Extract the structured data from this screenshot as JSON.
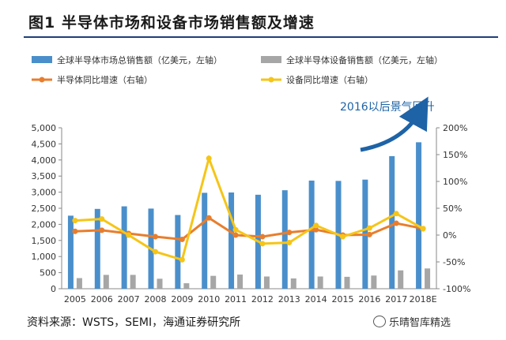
{
  "header": {
    "title": "图1  半导体市场和设备市场销售额及增速"
  },
  "footer": {
    "source": "资料来源：WSTS，SEMI，海通证券研究所",
    "watermark": "乐晴智库精选"
  },
  "annotation": {
    "text": "2016以后景气回升"
  },
  "colors": {
    "bar_market": "#4a8fcb",
    "bar_equip": "#a6a6a6",
    "line_market": "#e87e2d",
    "line_equip": "#f5c518",
    "arrow": "#1e63a6"
  },
  "chart_data": {
    "type": "bar",
    "title": "半导体市场和设备市场销售额及增速",
    "categories": [
      "2005",
      "2006",
      "2007",
      "2008",
      "2009",
      "2010",
      "2011",
      "2012",
      "2013",
      "2014",
      "2015",
      "2016",
      "2017",
      "2018E"
    ],
    "series": [
      {
        "name": "全球半导体市场总销售额（亿美元，左轴）",
        "axis": "left",
        "kind": "bar",
        "values": [
          2270,
          2480,
          2560,
          2490,
          2290,
          2980,
          2990,
          2920,
          3060,
          3360,
          3350,
          3390,
          4120,
          4550
        ]
      },
      {
        "name": "全球半导体设备销售额（亿美元，左轴）",
        "axis": "left",
        "kind": "bar",
        "values": [
          330,
          430,
          430,
          310,
          170,
          400,
          440,
          380,
          320,
          380,
          370,
          410,
          570,
          630
        ]
      },
      {
        "name": "半导体同比增速（右轴）",
        "axis": "right",
        "kind": "line",
        "values": [
          7,
          9,
          3,
          -3,
          -8,
          32,
          0,
          -3,
          5,
          10,
          0,
          1,
          22,
          12
        ]
      },
      {
        "name": "设备同比增速（右轴）",
        "axis": "right",
        "kind": "line",
        "values": [
          27,
          30,
          0,
          -31,
          -46,
          143,
          10,
          -16,
          -14,
          18,
          -3,
          13,
          40,
          12
        ]
      }
    ],
    "y_left": {
      "min": 0,
      "max": 5000,
      "ticks": [
        "0",
        "500",
        "1,000",
        "1,500",
        "2,000",
        "2,500",
        "3,000",
        "3,500",
        "4,000",
        "4,500",
        "5,000"
      ]
    },
    "y_right": {
      "min": -100,
      "max": 200,
      "ticks": [
        "-100%",
        "-50%",
        "0%",
        "50%",
        "100%",
        "150%",
        "200%"
      ]
    },
    "grid": false,
    "legend_position": "top"
  }
}
